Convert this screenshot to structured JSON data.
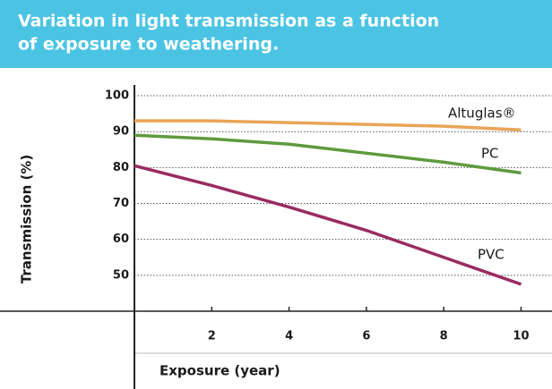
{
  "chart_data": {
    "type": "line",
    "title": [
      "Variation in light transmission as a function",
      "of exposure to weathering."
    ],
    "x_label": "Exposure (year)",
    "y_label": "Transmission (%)",
    "x": [
      0,
      2,
      4,
      6,
      8,
      10
    ],
    "series": [
      {
        "name": "Altuglas®",
        "color": "#e9a456",
        "values": [
          93,
          93,
          92.5,
          92,
          91.5,
          90.5
        ]
      },
      {
        "name": "PC",
        "color": "#5e9a3e",
        "values": [
          89,
          88,
          86.5,
          84,
          81.5,
          78.5
        ]
      },
      {
        "name": "PVC",
        "color": "#9a2b60",
        "values": [
          80.5,
          75,
          69,
          62.5,
          55,
          47.5
        ]
      }
    ],
    "xlim": [
      0,
      10.8
    ],
    "xticks": [
      2,
      4,
      6,
      8,
      10
    ],
    "ylim": [
      40,
      103
    ],
    "yticks": [
      50,
      60,
      70,
      80,
      90,
      100
    ],
    "grid": true
  }
}
